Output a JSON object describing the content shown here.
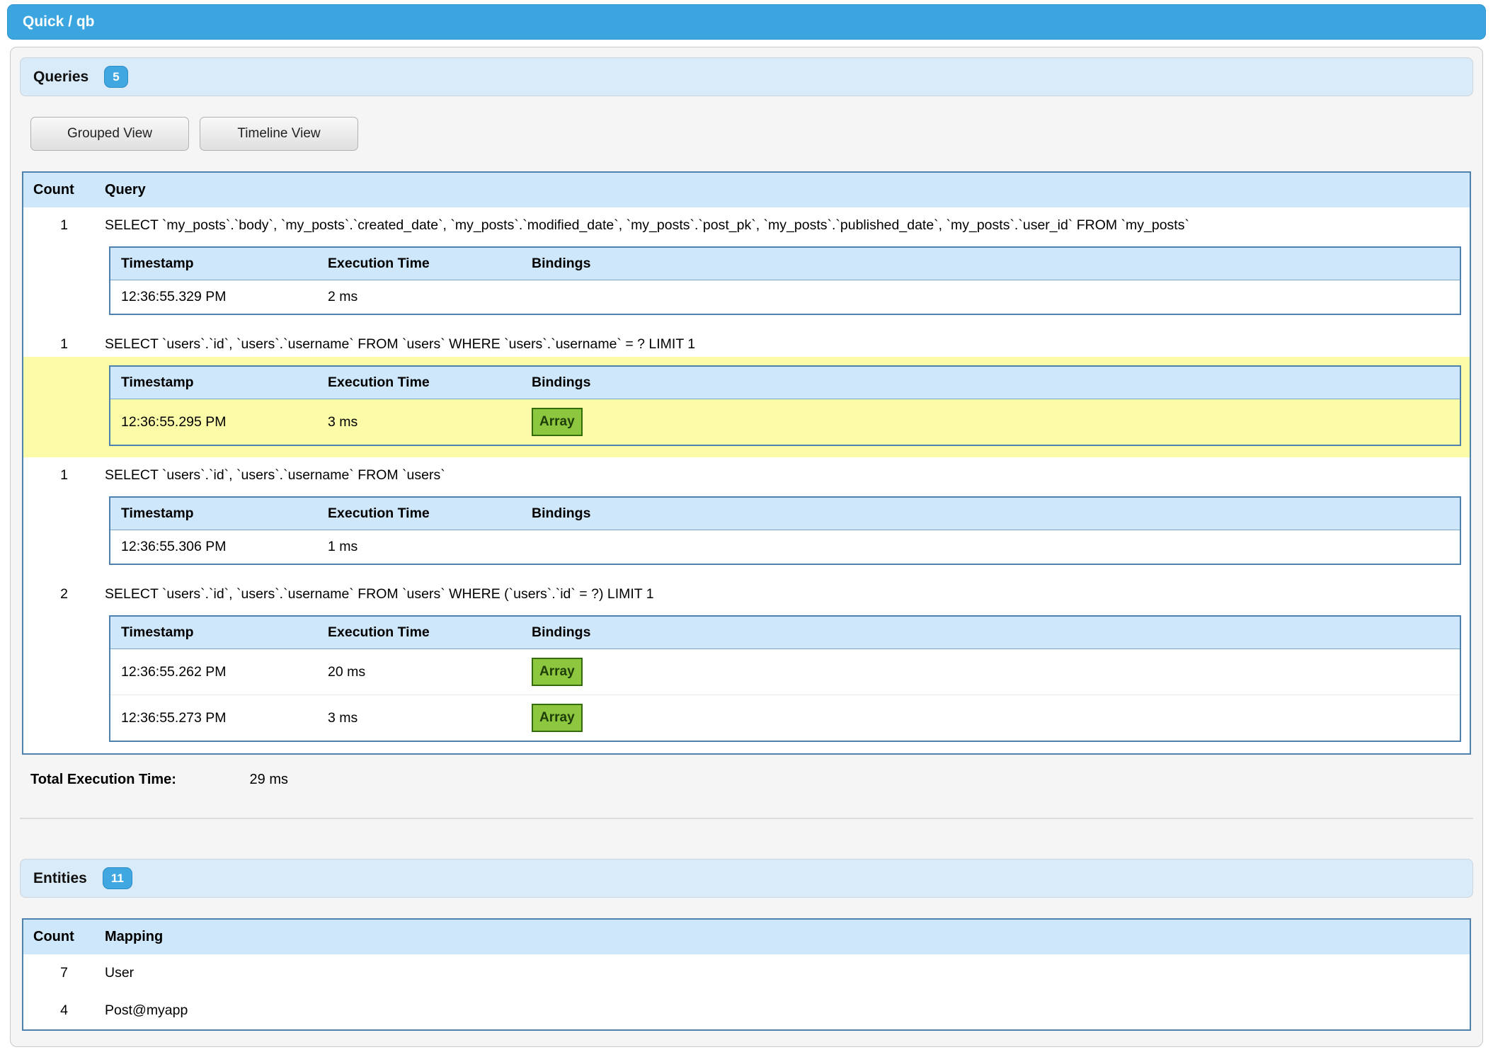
{
  "header": {
    "title": "Quick / qb"
  },
  "colors": {
    "topbar_blue": "#3ba5df",
    "section_head_blue": "#d9eaf8",
    "badge_blue": "#41a7e0",
    "table_header_blue": "#cee7fa",
    "table_border_blue": "#4e81ad",
    "highlight_yellow": "#fbfba8",
    "array_green": "#8dc63f",
    "array_border_green": "#356c0b"
  },
  "queries": {
    "title": "Queries",
    "badge": "5",
    "buttons": {
      "grouped": "Grouped View",
      "timeline": "Timeline View"
    },
    "table": {
      "columns": [
        "Count",
        "Query"
      ],
      "detail_columns": [
        "Timestamp",
        "Execution Time",
        "Bindings"
      ],
      "groups": [
        {
          "count": "1",
          "sql": "SELECT `my_posts`.`body`, `my_posts`.`created_date`, `my_posts`.`modified_date`, `my_posts`.`post_pk`, `my_posts`.`published_date`, `my_posts`.`user_id` FROM `my_posts`",
          "highlighted": false,
          "executions": [
            {
              "timestamp": "12:36:55.329 PM",
              "time": "2 ms",
              "bindings": null
            }
          ]
        },
        {
          "count": "1",
          "sql": "SELECT `users`.`id`, `users`.`username` FROM `users` WHERE `users`.`username` = ? LIMIT 1",
          "highlighted": true,
          "executions": [
            {
              "timestamp": "12:36:55.295 PM",
              "time": "3 ms",
              "bindings": "Array"
            }
          ]
        },
        {
          "count": "1",
          "sql": "SELECT `users`.`id`, `users`.`username` FROM `users`",
          "highlighted": false,
          "executions": [
            {
              "timestamp": "12:36:55.306 PM",
              "time": "1 ms",
              "bindings": null
            }
          ]
        },
        {
          "count": "2",
          "sql": "SELECT `users`.`id`, `users`.`username` FROM `users` WHERE (`users`.`id` = ?) LIMIT 1",
          "highlighted": false,
          "executions": [
            {
              "timestamp": "12:36:55.262 PM",
              "time": "20 ms",
              "bindings": "Array"
            },
            {
              "timestamp": "12:36:55.273 PM",
              "time": "3 ms",
              "bindings": "Array"
            }
          ]
        }
      ]
    },
    "total_label": "Total Execution Time:",
    "total_value": "29 ms"
  },
  "entities": {
    "title": "Entities",
    "badge": "11",
    "table": {
      "columns": [
        "Count",
        "Mapping"
      ],
      "rows": [
        {
          "count": "7",
          "mapping": "User"
        },
        {
          "count": "4",
          "mapping": "Post@myapp"
        }
      ]
    }
  }
}
